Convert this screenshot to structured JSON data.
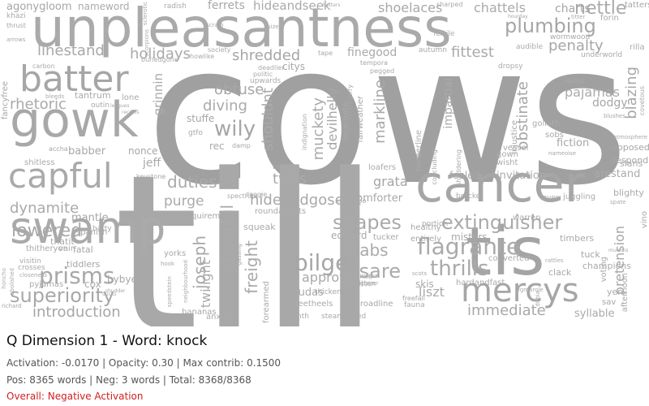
{
  "title": "Q Dimension 1 - Word: knock",
  "stats_line": "Activation: -0.0170 | Opacity: 0.30 | Max contrib: 0.1500",
  "counts_line": "Pos: 8365 words | Neg: 3 words | Total: 8368/8368",
  "overall_label": "Overall: Negative Activation",
  "colors": {
    "word": "#a8a8a8",
    "title": "#111111",
    "meta": "#555555",
    "overall": "#d22020"
  },
  "words": [
    "cows",
    "till",
    "unpleasantness",
    "cancer",
    "tis",
    "gowk",
    "swamp",
    "batter",
    "capful",
    "mercys",
    "extinguisher",
    "prisms",
    "dynamite",
    "superiority",
    "flagrante",
    "bilge",
    "thrills",
    "hideandgoseek",
    "shapes",
    "plumbing",
    "isare",
    "lowered",
    "nettle",
    "wily",
    "rhetoric",
    "linestand",
    "holidays",
    "shredded",
    "duties",
    "immediate",
    "crabs",
    "pretension",
    "cheerful",
    "joseph",
    "freight",
    "introduction",
    "twos",
    "obtuse",
    "diving",
    "penalty",
    "fittest",
    "markline",
    "muckety",
    "devilhelly",
    "shouldnt",
    "blazing",
    "pajamas",
    "obstinate",
    "impartial",
    "shoelaces",
    "chattels",
    "charts",
    "hideandseek",
    "ferrets",
    "nameword",
    "agonygloom",
    "finegood",
    "babber",
    "jeff",
    "nonce",
    "purge",
    "approve",
    "judas",
    "grata",
    "liszt",
    "skis",
    "syllable",
    "fiction",
    "invitation",
    "fooled",
    "arestand",
    "mantle",
    "twilight",
    "comforter",
    "edward",
    "stuffe",
    "rec",
    "citys",
    "grinnin",
    "dodgy",
    "slans",
    "misters",
    "timbers",
    "tuck",
    "champions",
    "afternoon",
    "yen",
    "sav",
    "cox",
    "bybye",
    "thatit",
    "fatal",
    "tantrum",
    "outin",
    "lone",
    "fancyfree",
    "anxiety",
    "bananas",
    "feetheels",
    "roadline",
    "unwritten",
    "hardandfast",
    "converted",
    "clack",
    "voting",
    "vino",
    "blighty",
    "despond",
    "goliath",
    "sobs",
    "gown",
    "injustice",
    "wisht",
    "vessel",
    "juggling",
    "opposed",
    "vain",
    "thitheryon",
    "shitless",
    "accha",
    "nth",
    "steamspeed",
    "squeak",
    "betterworse",
    "forearmed",
    "tucker",
    "entirely",
    "healthy",
    "portion",
    "crosses",
    "visitin",
    "tiddlers",
    "pyjamas",
    "yorks",
    "spanish",
    "batty",
    "bracket",
    "lover",
    "warren",
    "requirements",
    "roundabouts",
    "kangaroo",
    "tester",
    "keystone",
    "doggie",
    "spectrum",
    "gtfo",
    "damp",
    "upwards",
    "politic",
    "deadlier",
    "strawberry",
    "indignation",
    "concluding",
    "incarnate",
    "fairweather",
    "borderline",
    "shuddering",
    "loafers",
    "nameoise",
    "dropsy",
    "wallet",
    "atmosphere",
    "blushes",
    "covetous",
    "underworld",
    "forin",
    "tatters",
    "rilla",
    "wormwood",
    "audible",
    "tape",
    "sharped",
    "autumn",
    "pegged",
    "tempora",
    "fertile",
    "society",
    "howlike",
    "scram",
    "buriedgone",
    "radish",
    "khazi",
    "thrust",
    "carbon",
    "arrows",
    "bleeds",
    "leagues",
    "recolos",
    "sizes",
    "betters",
    "hourday",
    "titter",
    "sclerotic",
    "scorpions",
    "thickens",
    "deathkill",
    "gipper",
    "height",
    "freefall",
    "fauna",
    "scots",
    "rattles",
    "dubia",
    "rigmarole",
    "mumms",
    "spate",
    "richard",
    "closeness",
    "abolished",
    "honcho",
    "shudder",
    "speedstein",
    "hook",
    "neighbourhood",
    "gassing",
    "ducks"
  ]
}
